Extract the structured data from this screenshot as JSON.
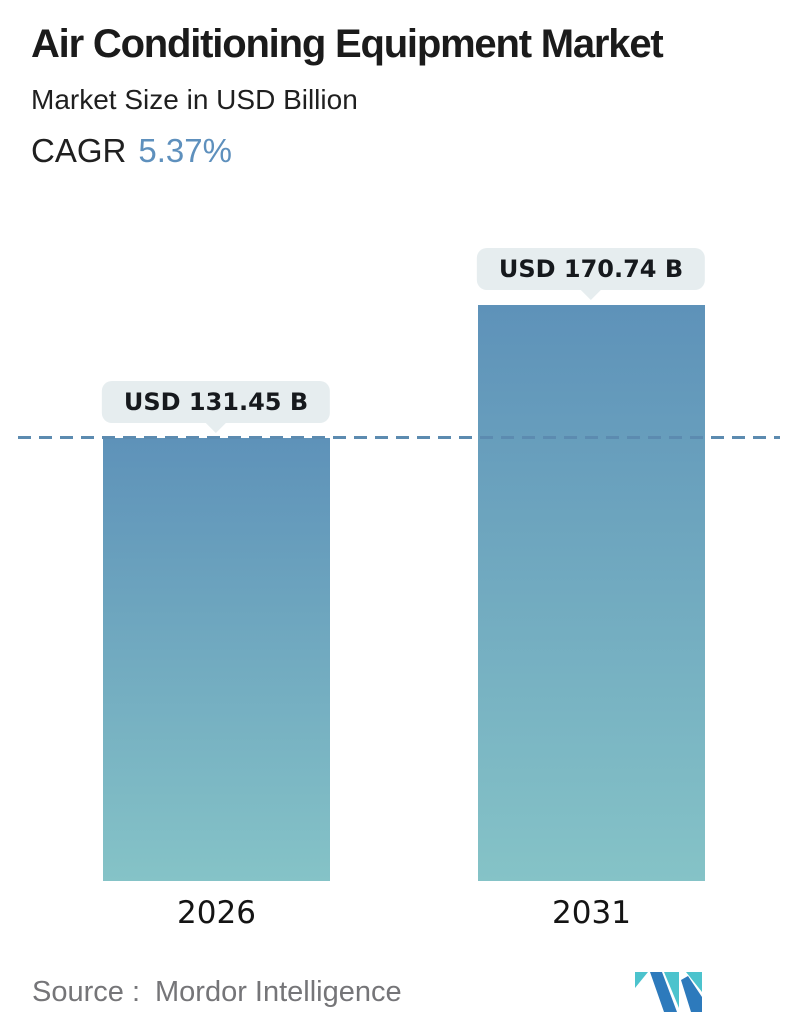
{
  "header": {
    "title": "Air Conditioning Equipment Market",
    "subtitle": "Market Size in USD Billion",
    "cagr_label": "CAGR",
    "cagr_value": "5.37%"
  },
  "chart_data": {
    "type": "bar",
    "title": "Air Conditioning Equipment Market",
    "subtitle": "Market Size in USD Billion",
    "unit": "USD Billion",
    "categories": [
      "2026",
      "2031"
    ],
    "values": [
      131.45,
      170.74
    ],
    "value_labels": [
      "USD 131.45 B",
      "USD 170.74 B"
    ],
    "cagr_percent": 5.37,
    "ylim": [
      0,
      170.74
    ],
    "grid": false,
    "legend": false,
    "reference_line": {
      "style": "dashed",
      "at_value": 131.45,
      "span": "full-width"
    }
  },
  "bars": [
    {
      "year": "2026",
      "value": 131.45,
      "label": "USD 131.45 B"
    },
    {
      "year": "2031",
      "value": 170.74,
      "label": "USD 170.74 B"
    }
  ],
  "footer": {
    "source_label": "Source :",
    "source_name": "Mordor Intelligence",
    "logo_icon": "mordor-intelligence-logo"
  },
  "colors": {
    "title_text": "#1b1b1b",
    "cagr_accent": "#5e90bd",
    "bar_gradient_top": "#5e92b9",
    "bar_gradient_bottom": "#85c3c7",
    "dash_line": "#5c8bb0",
    "label_pill_bg": "#e6edef",
    "label_pill_text": "#16191d",
    "source_text": "#757578",
    "logo_teal": "#4cc3cd",
    "logo_blue": "#2d7abc"
  }
}
